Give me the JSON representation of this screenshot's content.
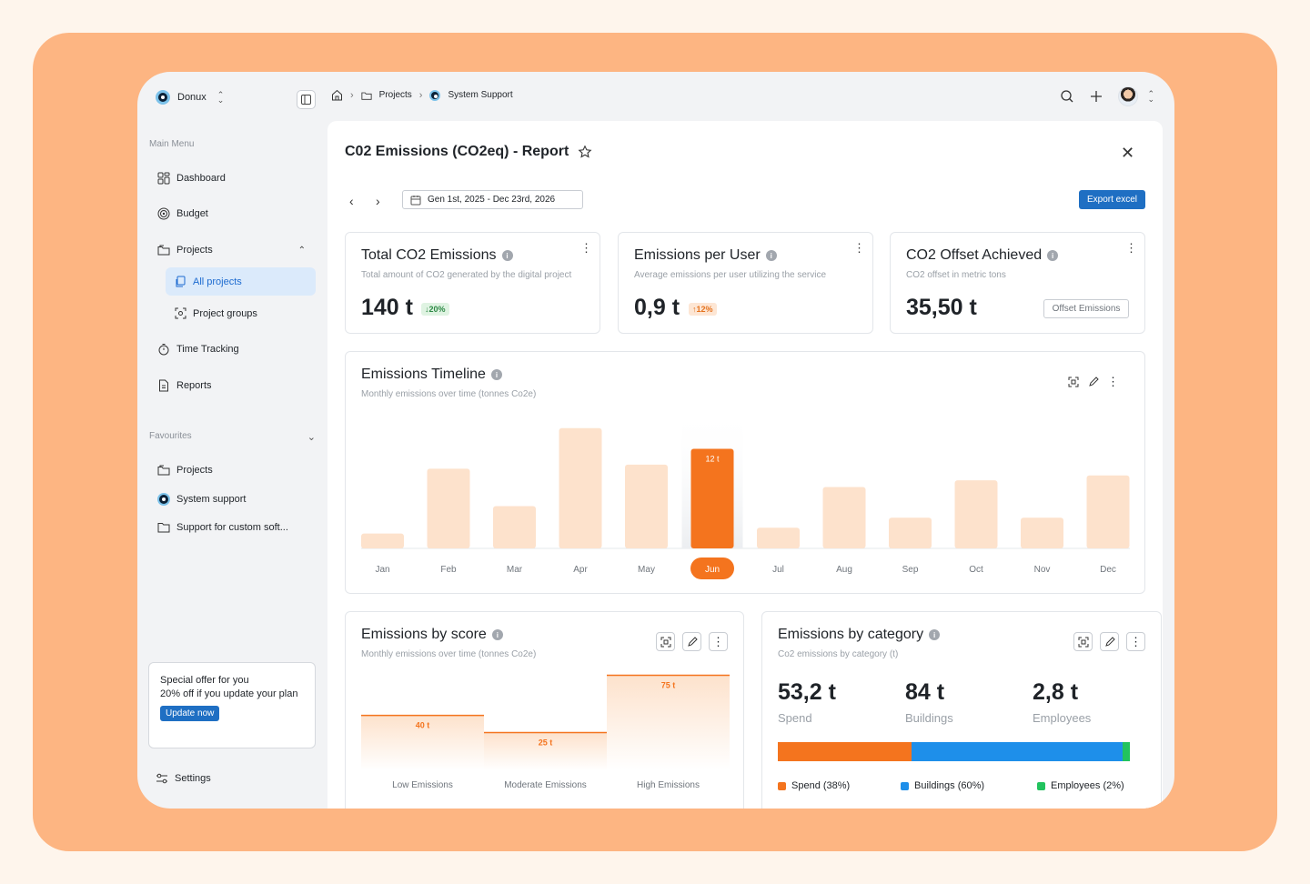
{
  "brand": {
    "name": "Donux"
  },
  "sidebar": {
    "main_menu_label": "Main Menu",
    "items": [
      {
        "label": "Dashboard",
        "icon": "dashboard-icon"
      },
      {
        "label": "Budget",
        "icon": "target-icon"
      },
      {
        "label": "Projects",
        "icon": "folder-icon"
      },
      {
        "label": "Time Tracking",
        "icon": "stopwatch-icon"
      },
      {
        "label": "Reports",
        "icon": "report-icon"
      }
    ],
    "project_subitems": [
      {
        "label": "All projects",
        "active": true
      },
      {
        "label": "Project groups",
        "active": false
      }
    ],
    "favourites_label": "Favourites",
    "favourites": [
      {
        "label": "Projects"
      },
      {
        "label": "System support"
      },
      {
        "label": "Support for custom soft..."
      }
    ],
    "offer": {
      "title": "Special offer for you",
      "text": "20% off if you update your plan",
      "button": "Update now"
    },
    "settings_label": "Settings"
  },
  "breadcrumb": {
    "items": [
      "Projects",
      "System Support"
    ]
  },
  "report": {
    "title": "C02 Emissions (CO2eq) - Report",
    "date_range": "Gen 1st, 2025 - Dec 23rd, 2026",
    "export_label": "Export excel"
  },
  "kpis": [
    {
      "title": "Total CO2 Emissions",
      "subtitle": "Total amount of CO2 generated by the digital project",
      "value": "140 t",
      "badge": "20%",
      "trend": "down"
    },
    {
      "title": "Emissions per User",
      "subtitle": "Average emissions per user utilizing the service",
      "value": "0,9 t",
      "badge": "12%",
      "trend": "up"
    },
    {
      "title": "CO2 Offset Achieved",
      "subtitle": "CO2 offset in metric tons",
      "value": "35,50 t",
      "button": "Offset Emissions"
    }
  ],
  "timeline": {
    "title": "Emissions Timeline",
    "subtitle": "Monthly emissions over time (tonnes Co2e)"
  },
  "score": {
    "title": "Emissions by score",
    "subtitle": "Monthly emissions over time (tonnes Co2e)"
  },
  "category": {
    "title": "Emissions by category",
    "subtitle": "Co2 emissions by category (t)",
    "items": [
      {
        "value": "53,2 t",
        "label": "Spend",
        "legend": "Spend (38%)",
        "share": 38,
        "color": "#f4741e"
      },
      {
        "value": "84 t",
        "label": "Buildings",
        "legend": "Buildings (60%)",
        "share": 60,
        "color": "#1e8fea"
      },
      {
        "value": "2,8 t",
        "label": "Employees",
        "legend": "Employees (2%)",
        "share": 2,
        "color": "#22c35e"
      }
    ]
  },
  "chart_data": [
    {
      "type": "bar",
      "categories": [
        "Jan",
        "Feb",
        "Mar",
        "Apr",
        "May",
        "Jun",
        "Jul",
        "Aug",
        "Sep",
        "Oct",
        "Nov",
        "Dec"
      ],
      "values": [
        1.8,
        9.6,
        5.1,
        14.5,
        10.1,
        12,
        2.5,
        7.4,
        3.7,
        8.2,
        3.7,
        8.8
      ],
      "highlight_index": 5,
      "highlight_label": "12 t",
      "colors": {
        "bar": "#fde2cc",
        "highlight": "#f4741e"
      }
    },
    {
      "type": "area",
      "categories": [
        "Low Emissions",
        "Moderate Emissions",
        "High Emissions"
      ],
      "values": [
        40,
        25,
        75
      ],
      "labels": [
        "40 t",
        "25 t",
        "75 t"
      ],
      "colors": {
        "line": "#f4741e"
      }
    }
  ]
}
